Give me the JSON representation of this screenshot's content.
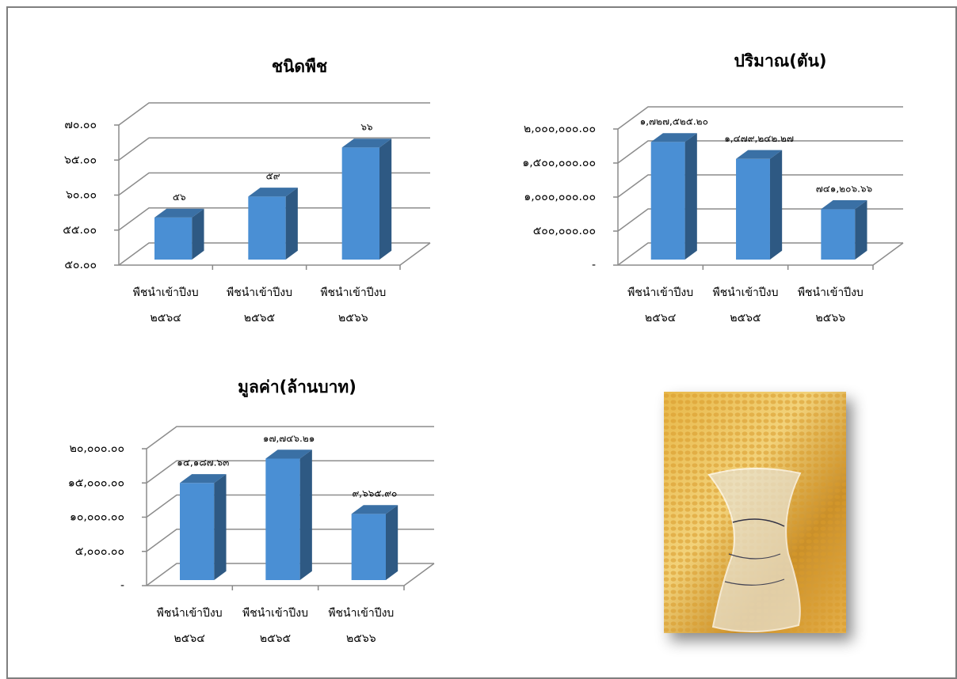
{
  "chart_data": [
    {
      "type": "bar3d",
      "title": "ชนิดพืช",
      "categories": [
        "พืชนำเข้าปีงบ ๒๕๖๔",
        "พืชนำเข้าปีงบ ๒๕๖๕",
        "พืชนำเข้าปีงบ ๒๕๖๖"
      ],
      "values": [
        56,
        59,
        66
      ],
      "value_labels": [
        "๕๖",
        "๕๙",
        "๖๖"
      ],
      "color": "#4a8fd4",
      "ylim": [
        50,
        70
      ],
      "yticks": [
        {
          "value": 50,
          "label": "๕๐.๐๐"
        },
        {
          "value": 55,
          "label": "๕๕.๐๐"
        },
        {
          "value": 60,
          "label": "๖๐.๐๐"
        },
        {
          "value": 65,
          "label": "๖๕.๐๐"
        },
        {
          "value": 70,
          "label": "๗๐.๐๐"
        }
      ],
      "grid": true
    },
    {
      "type": "bar3d",
      "title": "ปริมาณ(ตัน)",
      "categories": [
        "พืชนำเข้าปีงบ ๒๕๖๔",
        "พืชนำเข้าปีงบ ๒๕๖๕",
        "พืชนำเข้าปีงบ ๒๕๖๖"
      ],
      "values": [
        1727525.2,
        1479242.27,
        741206.66
      ],
      "value_labels": [
        "๑,๗๒๗,๕๒๕.๒๐",
        "๑,๔๗๙,๒๔๒.๒๗",
        "๗๔๑,๒๐๖.๖๖"
      ],
      "color": "#4a8fd4",
      "ylim": [
        0,
        2000000
      ],
      "yticks": [
        {
          "value": 0,
          "label": "-"
        },
        {
          "value": 500000,
          "label": "๕๐๐,๐๐๐.๐๐"
        },
        {
          "value": 1000000,
          "label": "๑,๐๐๐,๐๐๐.๐๐"
        },
        {
          "value": 1500000,
          "label": "๑,๕๐๐,๐๐๐.๐๐"
        },
        {
          "value": 2000000,
          "label": "๒,๐๐๐,๐๐๐.๐๐"
        }
      ],
      "grid": true
    },
    {
      "type": "bar3d",
      "title": "มูลค่า(ล้านบาท)",
      "categories": [
        "พืชนำเข้าปีงบ ๒๕๖๔",
        "พืชนำเข้าปีงบ ๒๕๖๕",
        "พืชนำเข้าปีงบ ๒๕๖๖"
      ],
      "values": [
        14187.63,
        17746.21,
        9665.9
      ],
      "value_labels": [
        "๑๔,๑๘๗.๖๓",
        "๑๗,๗๔๖.๒๑",
        "๙,๖๖๕.๙๐"
      ],
      "color": "#4a8fd4",
      "ylim": [
        0,
        20000
      ],
      "yticks": [
        {
          "value": 0,
          "label": "-"
        },
        {
          "value": 5000,
          "label": "๕,๐๐๐.๐๐"
        },
        {
          "value": 10000,
          "label": "๑๐,๐๐๐.๐๐"
        },
        {
          "value": 15000,
          "label": "๑๕,๐๐๐.๐๐"
        },
        {
          "value": 20000,
          "label": "๒๐,๐๐๐.๐๐"
        }
      ],
      "grid": true
    }
  ]
}
